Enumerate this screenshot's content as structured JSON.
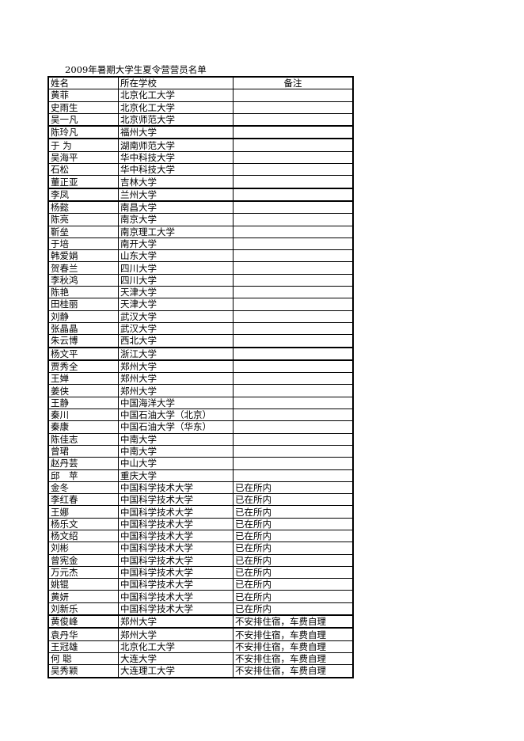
{
  "title": "2009年暑期大学生夏令营营员名单",
  "headers": [
    "姓名",
    "所在学校",
    "备注"
  ],
  "rows": [
    [
      "黄菲",
      "北京化工大学",
      ""
    ],
    [
      "史雨生",
      "北京化工大学",
      ""
    ],
    [
      "吴一凡",
      "北京师范大学",
      ""
    ],
    [
      "陈玲凡",
      "福州大学",
      ""
    ],
    [
      "于 为",
      "湖南师范大学",
      ""
    ],
    [
      "吴海平",
      "华中科技大学",
      ""
    ],
    [
      "石松",
      "华中科技大学",
      ""
    ],
    [
      "董正亚",
      "吉林大学",
      ""
    ],
    [
      "李凤",
      "兰州大学",
      ""
    ],
    [
      "杨懿",
      "南昌大学",
      ""
    ],
    [
      "陈亮",
      "南京大学",
      ""
    ],
    [
      "靳垒",
      "南京理工大学",
      ""
    ],
    [
      "于培",
      "南开大学",
      ""
    ],
    [
      "韩爱娟",
      "山东大学",
      ""
    ],
    [
      "贺春兰",
      "四川大学",
      ""
    ],
    [
      "李秋鸿",
      "四川大学",
      ""
    ],
    [
      "陈艳",
      "天津大学",
      ""
    ],
    [
      "田桂丽",
      "天津大学",
      ""
    ],
    [
      "刘静",
      "武汉大学",
      ""
    ],
    [
      "张晶晶",
      "武汉大学",
      ""
    ],
    [
      "朱云博",
      "西北大学",
      ""
    ],
    [
      "杨文平",
      "浙江大学",
      ""
    ],
    [
      "贾秀全",
      "郑州大学",
      ""
    ],
    [
      "王婵",
      "郑州大学",
      ""
    ],
    [
      "姜侠",
      "郑州大学",
      ""
    ],
    [
      "王静",
      "中国海洋大学",
      ""
    ],
    [
      "秦川",
      "中国石油大学（北京）",
      ""
    ],
    [
      "秦康",
      "中国石油大学（华东）",
      ""
    ],
    [
      "陈佳志",
      "中南大学",
      ""
    ],
    [
      "曾珺",
      "中南大学",
      ""
    ],
    [
      "赵丹芸",
      "中山大学",
      ""
    ],
    [
      "邱　苹",
      "重庆大学",
      ""
    ],
    [
      "金冬",
      "中国科学技术大学",
      "已在所内"
    ],
    [
      "李红春",
      "中国科学技术大学",
      "已在所内"
    ],
    [
      "王娜",
      "中国科学技术大学",
      "已在所内"
    ],
    [
      "杨乐文",
      "中国科学技术大学",
      "已在所内"
    ],
    [
      "杨文绍",
      "中国科学技术大学",
      "已在所内"
    ],
    [
      "刘彬",
      "中国科学技术大学",
      "已在所内"
    ],
    [
      "曾宪金",
      "中国科学技术大学",
      "已在所内"
    ],
    [
      "万元杰",
      "中国科学技术大学",
      "已在所内"
    ],
    [
      "姚锟",
      "中国科学技术大学",
      "已在所内"
    ],
    [
      "黄妍",
      "中国科学技术大学",
      "已在所内"
    ],
    [
      "刘新乐",
      "中国科学技术大学",
      "已在所内"
    ],
    [
      "黄俊峰",
      "郑州大学",
      "不安排住宿，车费自理"
    ],
    [
      "袁丹华",
      "郑州大学",
      "不安排住宿，车费自理"
    ],
    [
      "王冠雄",
      "北京化工大学",
      "不安排住宿，车费自理"
    ],
    [
      "何 聪",
      "大连大学",
      "不安排住宿，车费自理"
    ],
    [
      "吴秀颖",
      "大连理工大学",
      "不安排住宿，车费自理"
    ]
  ]
}
